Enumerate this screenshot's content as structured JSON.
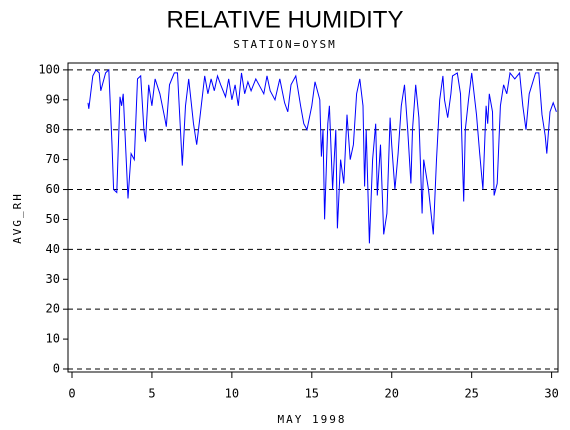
{
  "chart_data": {
    "type": "line",
    "title": "RELATIVE HUMIDITY",
    "subtitle": "STATION=OYSM",
    "x_label": "MAY 1998",
    "y_label": "AVG_RH",
    "xlim": [
      -0.25,
      30.4
    ],
    "ylim": [
      -1,
      102.3
    ],
    "xticks": [
      0,
      5,
      10,
      15,
      20,
      25,
      30
    ],
    "yticks": [
      0,
      10,
      20,
      30,
      40,
      50,
      60,
      70,
      80,
      90,
      100
    ],
    "grid_lines": [
      0,
      20,
      40,
      60,
      80,
      100
    ],
    "series": [
      {
        "color": "#0000ff",
        "x": [
          1.0,
          1.05,
          1.3,
          1.5,
          1.7,
          1.8,
          2.1,
          2.3,
          2.5,
          2.6,
          2.8,
          3.0,
          3.1,
          3.2,
          3.5,
          3.7,
          3.9,
          4.1,
          4.3,
          4.5,
          4.6,
          4.8,
          5.0,
          5.2,
          5.5,
          5.8,
          5.9,
          6.1,
          6.4,
          6.6,
          6.9,
          7.1,
          7.3,
          7.6,
          7.8,
          8.0,
          8.3,
          8.5,
          8.7,
          8.9,
          9.1,
          9.3,
          9.6,
          9.8,
          10.0,
          10.2,
          10.4,
          10.6,
          10.8,
          11.0,
          11.2,
          11.5,
          11.8,
          12.0,
          12.2,
          12.4,
          12.7,
          13.0,
          13.3,
          13.5,
          13.7,
          14.0,
          14.3,
          14.5,
          14.7,
          15.0,
          15.2,
          15.5,
          15.6,
          15.7,
          15.8,
          16.0,
          16.1,
          16.3,
          16.5,
          16.6,
          16.8,
          17.0,
          17.2,
          17.4,
          17.6,
          17.8,
          18.0,
          18.2,
          18.3,
          18.4,
          18.6,
          18.8,
          19.0,
          19.1,
          19.3,
          19.5,
          19.7,
          19.9,
          20.0,
          20.2,
          20.4,
          20.6,
          20.8,
          21.0,
          21.2,
          21.3,
          21.5,
          21.7,
          21.9,
          22.0,
          22.3,
          22.6,
          22.8,
          23.0,
          23.2,
          23.3,
          23.5,
          23.7,
          23.8,
          24.1,
          24.3,
          24.5,
          24.6,
          24.8,
          25.0,
          25.3,
          25.5,
          25.7,
          25.9,
          26.0,
          26.1,
          26.3,
          26.4,
          26.6,
          26.8,
          27.0,
          27.2,
          27.4,
          27.7,
          28.0,
          28.2,
          28.4,
          28.6,
          29.0,
          29.2,
          29.4,
          29.6,
          29.7,
          29.9,
          30.1,
          30.3
        ],
        "values": [
          89,
          87,
          98,
          100,
          99,
          93,
          99,
          100,
          75,
          60,
          59,
          91,
          88,
          92,
          57,
          72,
          70,
          97,
          98,
          80,
          76,
          95,
          88,
          97,
          92,
          84,
          81,
          95,
          99,
          99,
          68,
          88,
          97,
          82,
          75,
          84,
          98,
          92,
          97,
          93,
          98,
          95,
          91,
          97,
          90,
          95,
          88,
          99,
          92,
          96,
          93,
          97,
          94,
          92,
          98,
          93,
          90,
          97,
          89,
          86,
          95,
          98,
          88,
          82,
          80,
          88,
          96,
          90,
          71,
          80,
          50,
          82,
          88,
          60,
          80,
          47,
          70,
          62,
          85,
          70,
          75,
          92,
          97,
          88,
          61,
          80,
          42,
          70,
          82,
          58,
          75,
          45,
          52,
          84,
          75,
          60,
          72,
          88,
          95,
          80,
          62,
          80,
          95,
          84,
          52,
          70,
          60,
          45,
          70,
          90,
          98,
          90,
          84,
          92,
          98,
          99,
          92,
          56,
          80,
          90,
          99,
          85,
          72,
          60,
          88,
          82,
          92,
          86,
          58,
          62,
          88,
          95,
          92,
          99,
          97,
          99,
          88,
          80,
          92,
          99,
          99,
          85,
          78,
          72,
          86,
          89,
          86
        ]
      }
    ]
  }
}
